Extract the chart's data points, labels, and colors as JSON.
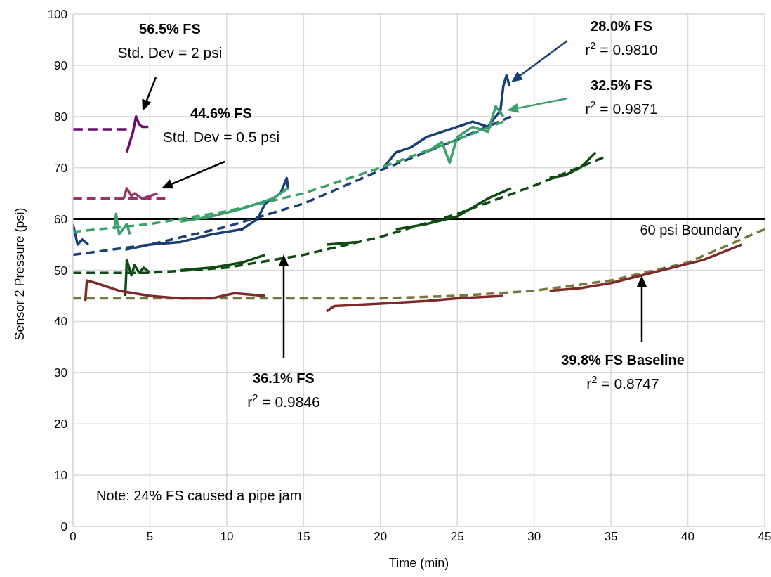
{
  "chart_data": {
    "type": "line",
    "xlabel": "Time (min)",
    "ylabel": "Sensor 2 Pressure (psi)",
    "xlim": [
      0,
      45
    ],
    "xticks": [
      0,
      5,
      10,
      15,
      20,
      25,
      30,
      35,
      40,
      45
    ],
    "ylim": [
      0,
      100
    ],
    "yticks": [
      0,
      10,
      20,
      30,
      40,
      50,
      60,
      70,
      80,
      90,
      100
    ],
    "grid": true,
    "marker": "none",
    "series": [
      {
        "line_style": "dashed",
        "color": "#6a0d6a",
        "x": [
          0,
          3.5
        ],
        "values": [
          77.5,
          77.5
        ]
      },
      {
        "line_style": "solid",
        "color": "#6a0d6a",
        "x": [
          3.5,
          3.7,
          3.9,
          4.1,
          4.3,
          4.5,
          4.9
        ],
        "values": [
          73,
          75,
          77,
          80,
          78.5,
          78,
          78
        ]
      },
      {
        "line_style": "dashed",
        "color": "#993366",
        "x": [
          0,
          6
        ],
        "values": [
          64,
          64
        ]
      },
      {
        "line_style": "solid",
        "color": "#993366",
        "x": [
          3.3,
          3.5,
          3.8,
          4.0,
          4.5,
          5.0,
          5.5
        ],
        "values": [
          64,
          66,
          64.5,
          65,
          64,
          64.5,
          65
        ]
      },
      {
        "line_style": "dashed",
        "color": "#1a3f73",
        "x": [
          0,
          5,
          10,
          15,
          20,
          25,
          28.5
        ],
        "values": [
          53,
          55,
          58.5,
          63,
          69.5,
          75.5,
          80
        ]
      },
      {
        "line_style": "solid",
        "color": "#1a3f73",
        "x": [
          0,
          0.3,
          0.6,
          1.0,
          2,
          3.4,
          5,
          7,
          9,
          11,
          12,
          12.5,
          13.5,
          13.9,
          14,
          17,
          20.2,
          21,
          22,
          23,
          24,
          25,
          26,
          27,
          27.5,
          27.8,
          28,
          28.2,
          28.4
        ],
        "values": [
          59,
          55,
          56,
          55,
          null,
          54,
          55,
          55.5,
          57,
          58,
          60,
          63,
          65,
          68,
          66,
          null,
          70,
          73,
          74,
          76,
          77,
          78,
          79,
          78,
          80,
          81,
          86,
          88,
          86
        ]
      },
      {
        "line_style": "dashed",
        "color": "#3ba06a",
        "x": [
          0,
          5,
          10,
          15,
          20,
          25,
          28
        ],
        "values": [
          57.5,
          59,
          61.5,
          65,
          70,
          75.5,
          79
        ]
      },
      {
        "line_style": "solid",
        "color": "#3ba06a",
        "x": [
          2.7,
          2.8,
          3,
          3.5,
          3.7,
          5,
          7,
          9,
          11,
          13,
          14,
          18,
          23,
          24,
          24.5,
          25,
          26,
          27,
          27.5,
          28
        ],
        "values": [
          58,
          61,
          57,
          59,
          57,
          null,
          59.5,
          60.5,
          62,
          64,
          66,
          null,
          73,
          75,
          71,
          76,
          78,
          77,
          82,
          80
        ]
      },
      {
        "line_style": "dashed",
        "color": "#0f4a12",
        "x": [
          0,
          5,
          10,
          15,
          20,
          25,
          30,
          34.5
        ],
        "values": [
          49.5,
          49.5,
          50.5,
          53,
          56.5,
          61,
          66.5,
          72
        ]
      },
      {
        "line_style": "solid",
        "color": "#0f4a12",
        "x": [
          3.4,
          3.5,
          3.8,
          4.0,
          4.3,
          4.6,
          5,
          6,
          7,
          9,
          11,
          12.5,
          14,
          16.5,
          18.5,
          20,
          21,
          23,
          25,
          27,
          28.5,
          30,
          31,
          32,
          33,
          34
        ],
        "values": [
          45,
          52,
          49,
          51,
          49.5,
          50.5,
          49.5,
          null,
          50,
          50.5,
          51.5,
          53,
          null,
          55,
          55.5,
          null,
          58,
          59,
          60.5,
          64,
          66,
          null,
          68,
          68.5,
          70,
          73
        ]
      },
      {
        "line_style": "dashed",
        "color": "#77773a",
        "x": [
          0,
          10,
          20,
          25,
          30,
          35,
          40,
          45
        ],
        "values": [
          44.5,
          44.5,
          44.5,
          45,
          46,
          48,
          51.5,
          58
        ]
      },
      {
        "line_style": "solid",
        "color": "#7f2a2a",
        "x": [
          0.8,
          0.9,
          1.5,
          3,
          5,
          7,
          9,
          10.5,
          12.5,
          14.5,
          16.5,
          17,
          20,
          23,
          25,
          28,
          29.5,
          31,
          33,
          35,
          37,
          39,
          41,
          43.5
        ],
        "values": [
          44,
          48,
          47.5,
          46,
          45,
          44.5,
          44.5,
          45.5,
          45,
          null,
          42,
          43,
          43.5,
          44,
          44.5,
          45,
          null,
          46,
          46.5,
          47.5,
          49,
          50.5,
          52,
          55
        ]
      }
    ],
    "ref_lines": [
      {
        "axis": "y",
        "value": 60,
        "label": "60 psi Boundary",
        "color": "#000000",
        "line_style": "solid"
      }
    ],
    "annotations": [
      "56.5% FS\nStd. Dev = 2 psi",
      "44.6% FS\nStd. Dev = 0.5 psi",
      "28.0% FS\nr$^{2}$ = 0.9810",
      "32.5% FS\nr$^{2}$ = 0.9871",
      "36.1% FS\nr$^{2}$ = 0.9846",
      "39.8% FS Baseline\nr$^{2}$ = 0.8747",
      "Note: 24% FS caused a pipe jam"
    ]
  }
}
